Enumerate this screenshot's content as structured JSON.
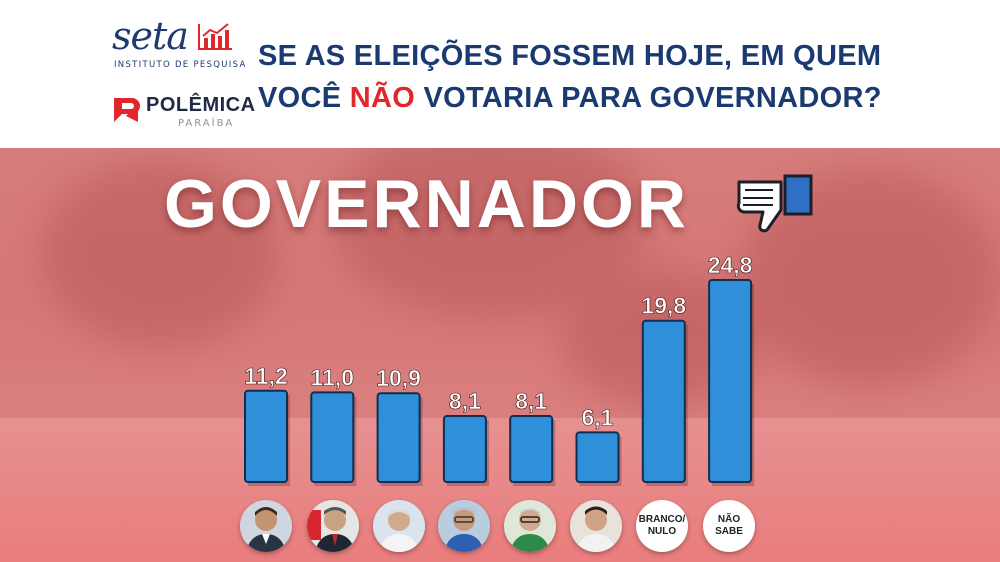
{
  "header": {
    "seta_logo": {
      "word": "seta",
      "subtitle": "INSTITUTO DE PESQUISA"
    },
    "polemica_logo": {
      "word": "POLÊMICA",
      "subtitle": "PARAÍBA"
    },
    "headline_line1": "SE AS ELEIÇÕES FOSSEM HOJE, EM QUEM",
    "headline_line2_before": "VOCÊ ",
    "headline_line2_highlight": "NÃO",
    "headline_line2_after": " VOTARIA PARA GOVERNADOR?"
  },
  "colors": {
    "headline_blue": "#1b3a72",
    "highlight_red": "#e2262e",
    "bar_blue": "#2f8fd8",
    "panel_red": "#d77777"
  },
  "icons": [
    "thumbs-down-icon",
    "seta-bar-chart-icon",
    "polemica-p-icon"
  ],
  "chart_data": {
    "type": "bar",
    "title": "GOVERNADOR",
    "categories": [
      "",
      "",
      "",
      "",
      "",
      "",
      "BRANCO/ NULO",
      "NÃO SABE"
    ],
    "values": [
      11.2,
      11.0,
      10.9,
      8.1,
      8.1,
      6.1,
      19.8,
      24.8
    ],
    "value_labels": [
      "11,2",
      "11,0",
      "10,9",
      "8,1",
      "8,1",
      "6,1",
      "19,8",
      "24,8"
    ],
    "ylim": [
      0,
      24.8
    ],
    "grid": false,
    "legend": "none",
    "category_markers": [
      "candidate-photo",
      "candidate-photo",
      "candidate-photo",
      "candidate-photo",
      "candidate-photo",
      "candidate-photo",
      "text",
      "text"
    ]
  }
}
